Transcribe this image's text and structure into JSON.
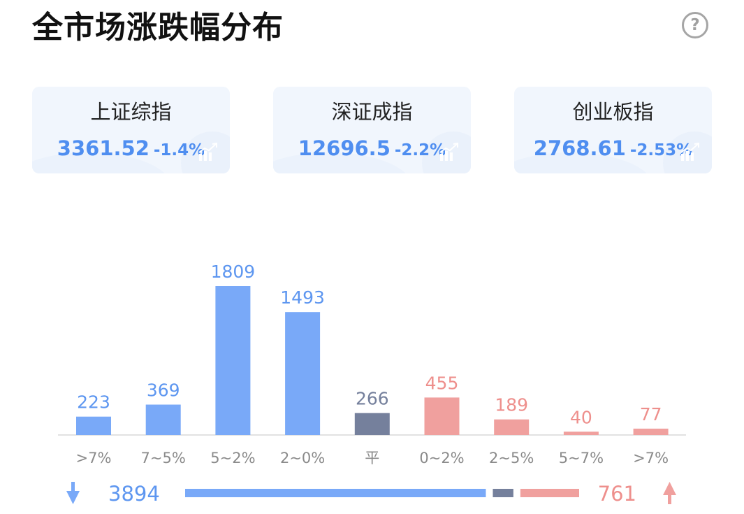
{
  "header": {
    "title": "全市场涨跌幅分布",
    "help_icon": "?"
  },
  "indices": [
    {
      "name": "上证综指",
      "value": "3361.52",
      "change": "-1.4%"
    },
    {
      "name": "深证成指",
      "value": "12696.5",
      "change": "-2.2%"
    },
    {
      "name": "创业板指",
      "value": "2768.61",
      "change": "-2.53%"
    }
  ],
  "colors": {
    "down": "#79a9f8",
    "down_text": "#5d96f0",
    "flat": "#75809c",
    "up": "#f0a09e",
    "up_text": "#ee8f8c",
    "card_bg": "#f1f6fd"
  },
  "chart_data": {
    "type": "bar",
    "categories": [
      ">7%",
      "7~5%",
      "5~2%",
      "2~0%",
      "平",
      "0~2%",
      "2~5%",
      "5~7%",
      ">7%"
    ],
    "values": [
      223,
      369,
      1809,
      1493,
      266,
      455,
      189,
      40,
      77
    ],
    "groups": [
      "down",
      "down",
      "down",
      "down",
      "flat",
      "up",
      "up",
      "up",
      "up"
    ],
    "title": "全市场涨跌幅分布",
    "xlabel": "",
    "ylabel": "",
    "ylim": [
      0,
      1809
    ]
  },
  "summary": {
    "down_total": 3894,
    "flat_total": 266,
    "up_total": 761
  }
}
